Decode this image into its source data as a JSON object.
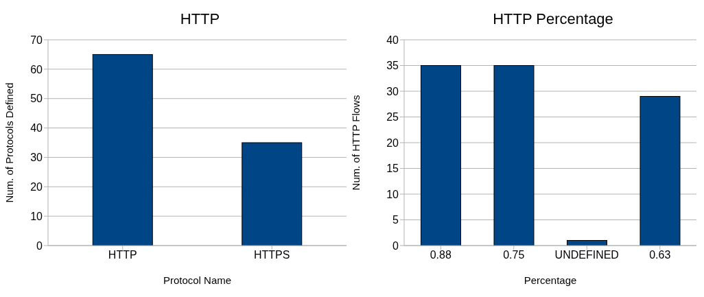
{
  "chart_data": [
    {
      "type": "bar",
      "title": "HTTP",
      "xlabel": "Protocol Name",
      "ylabel": "Num. of Protocols Defined",
      "categories": [
        "HTTP",
        "HTTPS"
      ],
      "values": [
        65,
        35
      ],
      "color": "#004586",
      "ylim": [
        0,
        70
      ],
      "yticks": [
        0,
        10,
        20,
        30,
        40,
        50,
        60,
        70
      ],
      "grid": "y"
    },
    {
      "type": "bar",
      "title": "HTTP Percentage",
      "xlabel": "Percentage",
      "ylabel": "Num. of HTTP Flows",
      "categories": [
        "0.88",
        "0.75",
        "UNDEFINED",
        "0.63"
      ],
      "values": [
        35,
        35,
        1,
        29
      ],
      "color": "#004586",
      "ylim": [
        0,
        40
      ],
      "yticks": [
        0,
        5,
        10,
        15,
        20,
        25,
        30,
        35,
        40
      ],
      "grid": "y"
    }
  ]
}
